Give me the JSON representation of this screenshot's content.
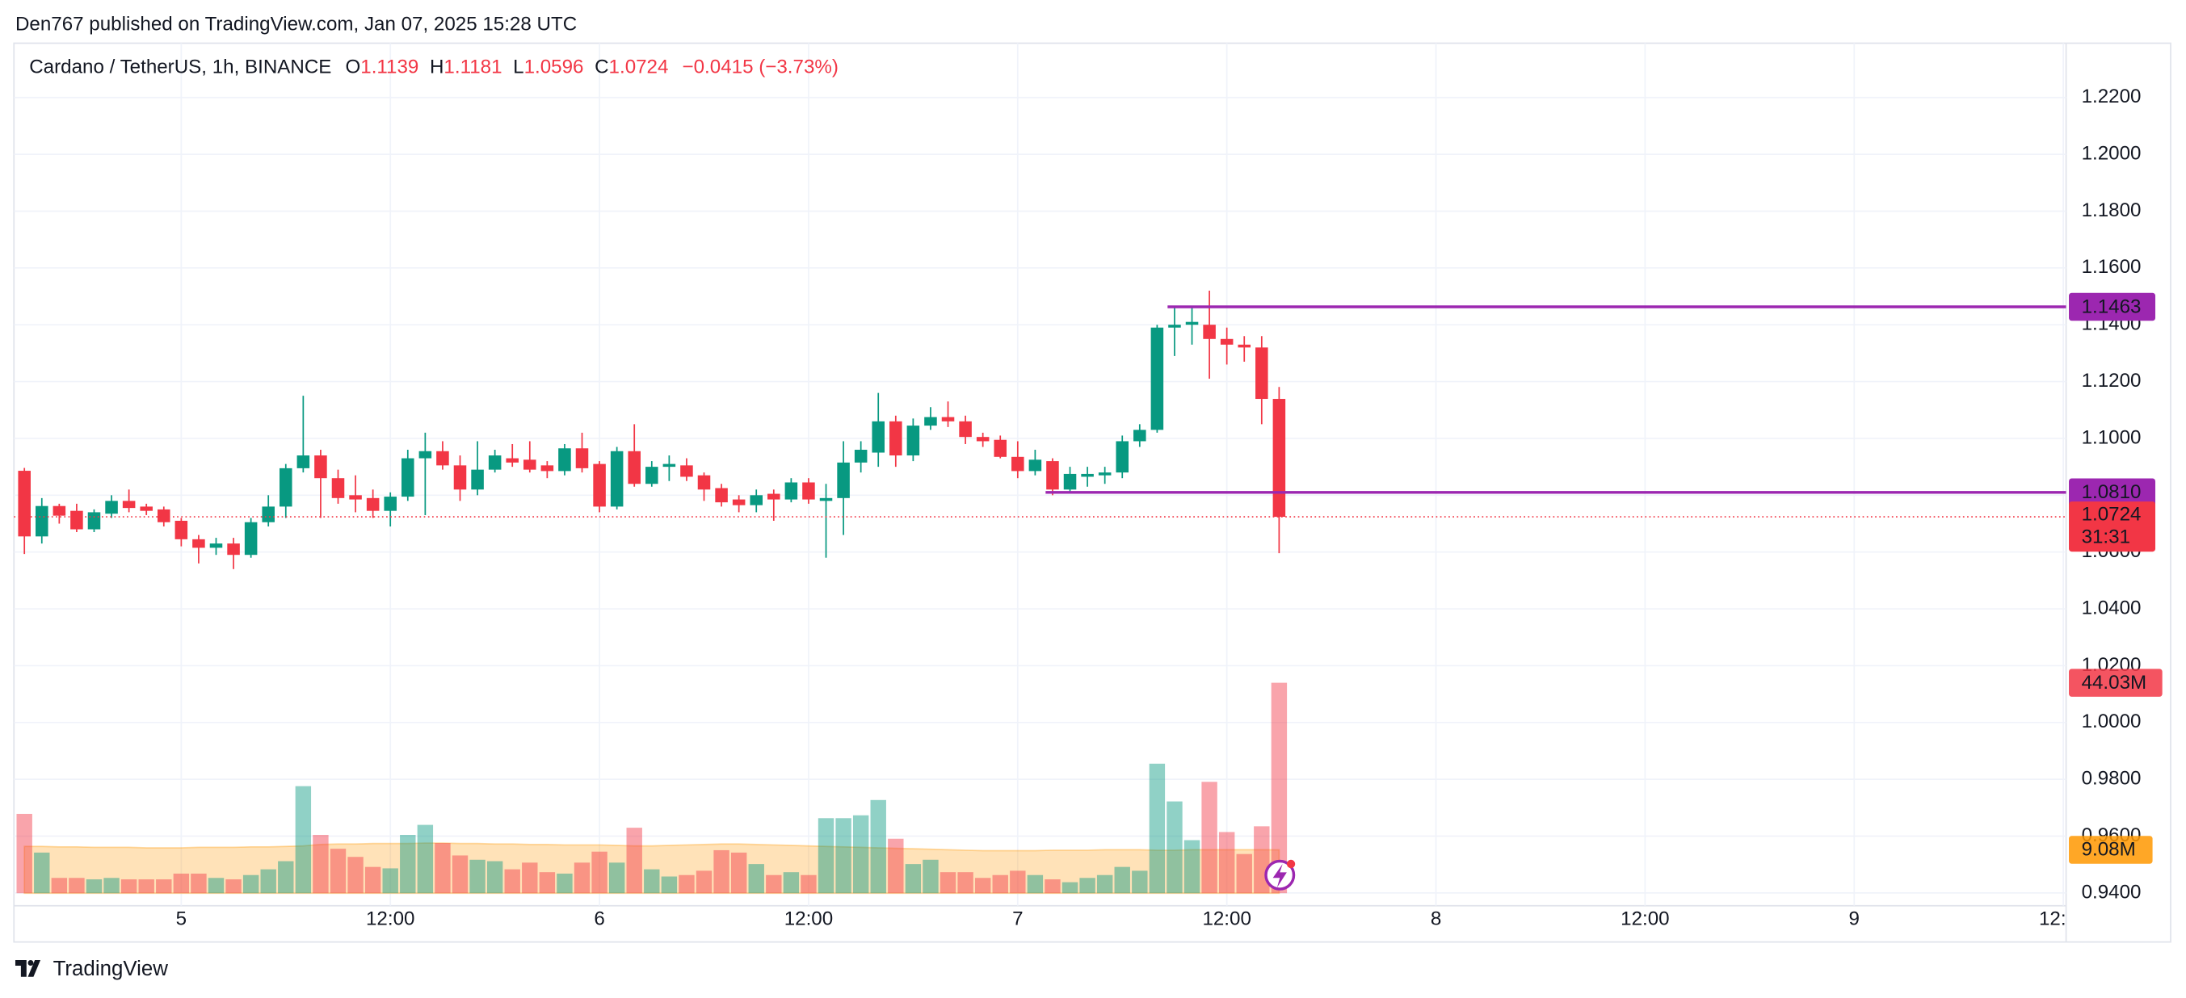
{
  "header": "Den767 published on TradingView.com, Jan 07, 2025 15:28 UTC",
  "footer": "TradingView",
  "chart_data": {
    "type": "candlestick",
    "title": "Cardano / TetherUS, 1h, BINANCE",
    "ohlc_letters": [
      "O",
      "H",
      "L",
      "C"
    ],
    "change": "−0.0415 (−3.73%)",
    "up_color": "#089981",
    "down_color": "#f23645",
    "candles": {
      "open": [
        1.0886,
        1.0655,
        1.0762,
        1.0745,
        1.068,
        1.0735,
        1.078,
        1.076,
        1.075,
        1.071,
        1.0645,
        1.0615,
        1.063,
        1.059,
        1.0705,
        1.076,
        1.0895,
        1.094,
        1.086,
        1.08,
        1.079,
        1.0745,
        1.0795,
        1.093,
        1.0955,
        1.0905,
        1.082,
        1.089,
        1.093,
        1.0925,
        1.0905,
        1.0885,
        1.0965,
        1.091,
        1.076,
        1.0955,
        1.084,
        1.09,
        1.0905,
        1.087,
        1.0825,
        1.0785,
        1.0765,
        1.0805,
        1.0785,
        1.0845,
        1.078,
        1.079,
        1.0915,
        1.095,
        1.106,
        1.094,
        1.1045,
        1.1075,
        1.106,
        1.1005,
        1.0995,
        1.0935,
        1.0885,
        1.092,
        1.082,
        1.0865,
        1.087,
        1.088,
        1.099,
        1.103,
        1.139,
        1.14,
        1.14,
        1.135,
        1.133,
        1.132,
        1.1139
      ],
      "high": [
        1.0896,
        1.079,
        1.077,
        1.077,
        1.075,
        1.08,
        1.082,
        1.077,
        1.076,
        1.072,
        1.066,
        1.065,
        1.065,
        1.072,
        1.08,
        1.091,
        1.115,
        1.096,
        1.089,
        1.087,
        1.082,
        1.081,
        1.096,
        1.102,
        1.099,
        1.094,
        1.099,
        1.096,
        1.098,
        1.099,
        1.092,
        1.098,
        1.102,
        1.092,
        1.097,
        1.105,
        1.092,
        1.094,
        1.093,
        1.088,
        1.084,
        1.08,
        1.082,
        1.082,
        1.086,
        1.086,
        1.084,
        1.099,
        1.099,
        1.116,
        1.108,
        1.107,
        1.111,
        1.113,
        1.108,
        1.102,
        1.101,
        1.099,
        1.096,
        1.093,
        1.09,
        1.09,
        1.09,
        1.101,
        1.105,
        1.14,
        1.146,
        1.1463,
        1.152,
        1.139,
        1.136,
        1.136,
        1.1181
      ],
      "low": [
        1.0593,
        1.063,
        1.07,
        1.067,
        1.067,
        1.072,
        1.074,
        1.073,
        1.069,
        1.062,
        1.056,
        1.059,
        1.054,
        1.058,
        1.069,
        1.072,
        1.088,
        1.072,
        1.077,
        1.074,
        1.072,
        1.069,
        1.078,
        1.073,
        1.089,
        1.078,
        1.08,
        1.088,
        1.09,
        1.088,
        1.086,
        1.087,
        1.088,
        1.074,
        1.075,
        1.083,
        1.083,
        1.085,
        1.085,
        1.078,
        1.076,
        1.074,
        1.074,
        1.071,
        1.0775,
        1.077,
        1.058,
        1.066,
        1.088,
        1.09,
        1.09,
        1.092,
        1.103,
        1.104,
        1.098,
        1.097,
        1.093,
        1.086,
        1.087,
        1.08,
        1.081,
        1.083,
        1.084,
        1.086,
        1.097,
        1.102,
        1.129,
        1.133,
        1.121,
        1.126,
        1.127,
        1.105,
        1.0596
      ],
      "close": [
        1.0655,
        1.0762,
        1.0728,
        1.068,
        1.074,
        1.078,
        1.0755,
        1.0745,
        1.0705,
        1.0645,
        1.0615,
        1.063,
        1.059,
        1.0705,
        1.076,
        1.0895,
        1.094,
        1.086,
        1.079,
        1.0785,
        1.0745,
        1.0795,
        1.093,
        1.0955,
        1.0905,
        1.082,
        1.089,
        1.094,
        1.0915,
        1.089,
        1.0885,
        1.0965,
        1.0895,
        1.076,
        1.0955,
        1.084,
        1.09,
        1.091,
        1.0865,
        1.082,
        1.0775,
        1.0765,
        1.08,
        1.0785,
        1.0845,
        1.0785,
        1.079,
        1.0915,
        1.096,
        1.106,
        1.094,
        1.1045,
        1.1075,
        1.106,
        1.1005,
        1.099,
        1.0935,
        1.0885,
        1.0925,
        1.082,
        1.0875,
        1.0875,
        1.088,
        1.099,
        1.103,
        1.139,
        1.14,
        1.141,
        1.135,
        1.133,
        1.132,
        1.1139,
        1.0724
      ]
    },
    "volume": [
      16.6,
      8.5,
      3.2,
      3.2,
      2.9,
      3.2,
      2.9,
      2.9,
      2.9,
      4.1,
      4.1,
      3.2,
      2.9,
      3.8,
      5.0,
      6.7,
      22.4,
      12.2,
      9.3,
      7.6,
      5.5,
      5.2,
      12.2,
      14.3,
      10.5,
      7.9,
      7.0,
      6.7,
      5.0,
      6.4,
      4.4,
      4.1,
      6.4,
      8.7,
      6.4,
      13.7,
      5.0,
      3.5,
      3.8,
      4.7,
      9.0,
      8.5,
      6.1,
      3.8,
      4.4,
      3.8,
      15.7,
      15.7,
      16.3,
      19.5,
      11.4,
      6.1,
      7.0,
      4.4,
      4.4,
      3.2,
      3.8,
      4.7,
      3.8,
      2.9,
      2.3,
      3.2,
      3.8,
      5.5,
      4.7,
      27.1,
      19.2,
      11.1,
      23.3,
      12.8,
      8.2,
      14.0,
      44.03
    ],
    "volume_last_label": "44.03M",
    "volume_ma": [
      9.8,
      9.8,
      9.7,
      9.7,
      9.6,
      9.6,
      9.6,
      9.5,
      9.5,
      9.5,
      9.6,
      9.6,
      9.6,
      9.7,
      9.7,
      9.8,
      9.9,
      10.2,
      10.3,
      10.3,
      10.4,
      10.4,
      10.4,
      10.5,
      10.5,
      10.4,
      10.4,
      10.3,
      10.3,
      10.2,
      10.2,
      10.1,
      10.1,
      10.1,
      10.0,
      9.9,
      9.9,
      10.0,
      10.1,
      10.2,
      10.3,
      10.3,
      10.2,
      10.1,
      10.0,
      9.9,
      9.8,
      9.7,
      9.6,
      9.5,
      9.4,
      9.3,
      9.2,
      9.1,
      9.0,
      8.9,
      8.9,
      8.9,
      8.9,
      9.0,
      9.0,
      9.0,
      9.1,
      9.1,
      9.1,
      9.0,
      9.0,
      9.1,
      9.1,
      9.1,
      9.1,
      9.1,
      9.08
    ],
    "volume_ma_last_label": "9.08M",
    "volume_ma_color": "#ff9800",
    "vlim": [
      0,
      50
    ],
    "countdown": "31:31",
    "hlines": [
      {
        "value": 1.1463,
        "label": "1.1463",
        "start": 66
      },
      {
        "value": 1.081,
        "label": "1.0810",
        "start": 59
      }
    ],
    "hline_color": "#9c27b0",
    "ylim": [
      0.9355,
      1.2391
    ],
    "yticks": [
      {
        "value": 1.22,
        "label": "1.2200"
      },
      {
        "value": 1.2,
        "label": "1.2000"
      },
      {
        "value": 1.18,
        "label": "1.1800"
      },
      {
        "value": 1.16,
        "label": "1.1600"
      },
      {
        "value": 1.14,
        "label": "1.1400"
      },
      {
        "value": 1.12,
        "label": "1.1200"
      },
      {
        "value": 1.1,
        "label": "1.1000"
      },
      {
        "value": 1.08,
        "label": "1.0800"
      },
      {
        "value": 1.06,
        "label": "1.0600"
      },
      {
        "value": 1.04,
        "label": "1.0400"
      },
      {
        "value": 1.02,
        "label": "1.0200"
      },
      {
        "value": 1.0,
        "label": "1.0000"
      },
      {
        "value": 0.98,
        "label": "0.9800"
      },
      {
        "value": 0.96,
        "label": "0.9600"
      },
      {
        "value": 0.94,
        "label": "0.9400"
      }
    ],
    "xlim": [
      -0.6,
      117.16
    ],
    "xticks": [
      {
        "value": 9,
        "label": "5"
      },
      {
        "value": 21,
        "label": "12:00"
      },
      {
        "value": 33,
        "label": "6"
      },
      {
        "value": 45,
        "label": "12:00"
      },
      {
        "value": 57,
        "label": "7"
      },
      {
        "value": 69,
        "label": "12:00"
      },
      {
        "value": 81,
        "label": "8"
      },
      {
        "value": 93,
        "label": "12:00"
      },
      {
        "value": 105,
        "label": "9"
      },
      {
        "value": 117,
        "label": "12:"
      }
    ],
    "grid": true
  }
}
